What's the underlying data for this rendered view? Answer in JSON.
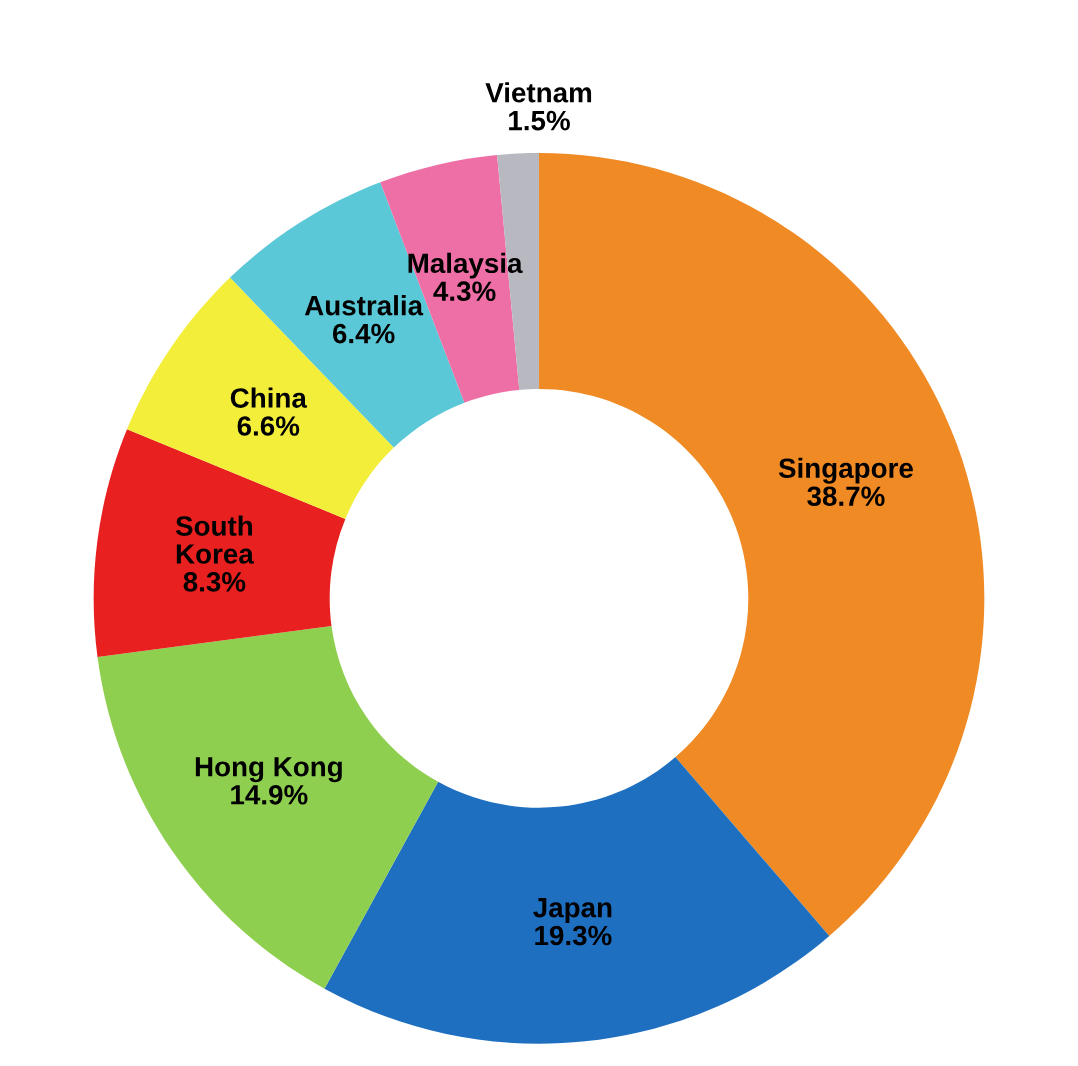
{
  "chart_data": {
    "type": "donut",
    "categories": [
      "Singapore",
      "Japan",
      "Hong Kong",
      "South Korea",
      "China",
      "Australia",
      "Malaysia",
      "Vietnam"
    ],
    "values": [
      38.7,
      19.3,
      14.9,
      8.3,
      6.6,
      6.4,
      4.3,
      1.5
    ],
    "colors": [
      "#f08a24",
      "#1f6fc0",
      "#8fcf4f",
      "#e8201f",
      "#f2ee3a",
      "#5bc8d8",
      "#ee6fa5",
      "#b8b8c0"
    ],
    "value_labels": [
      "38.7%",
      "19.3%",
      "14.9%",
      "8.3%",
      "6.6%",
      "6.4%",
      "4.3%",
      "1.5%"
    ]
  }
}
